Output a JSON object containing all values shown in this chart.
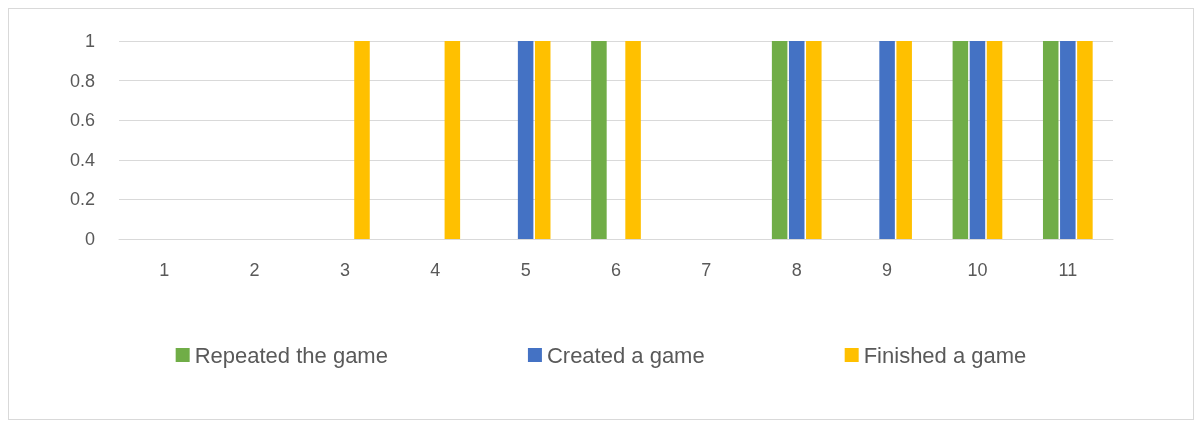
{
  "chart_data": {
    "type": "bar",
    "categories": [
      "1",
      "2",
      "3",
      "4",
      "5",
      "6",
      "7",
      "8",
      "9",
      "10",
      "11"
    ],
    "series": [
      {
        "name": "Repeated the game",
        "color": "#70ad47",
        "values": [
          0,
          0,
          0,
          0,
          0,
          1,
          0,
          1,
          0,
          1,
          1
        ]
      },
      {
        "name": "Created a game",
        "color": "#4472c4",
        "values": [
          0,
          0,
          0,
          0,
          1,
          0,
          0,
          1,
          1,
          1,
          1
        ]
      },
      {
        "name": "Finished a game",
        "color": "#ffc000",
        "values": [
          0,
          0,
          1,
          1,
          1,
          1,
          0,
          1,
          1,
          1,
          1
        ]
      }
    ],
    "ylim": [
      0,
      1
    ],
    "yticks": [
      0,
      0.2,
      0.4,
      0.6,
      0.8,
      1
    ],
    "grid": "y",
    "legend": "bottom"
  }
}
